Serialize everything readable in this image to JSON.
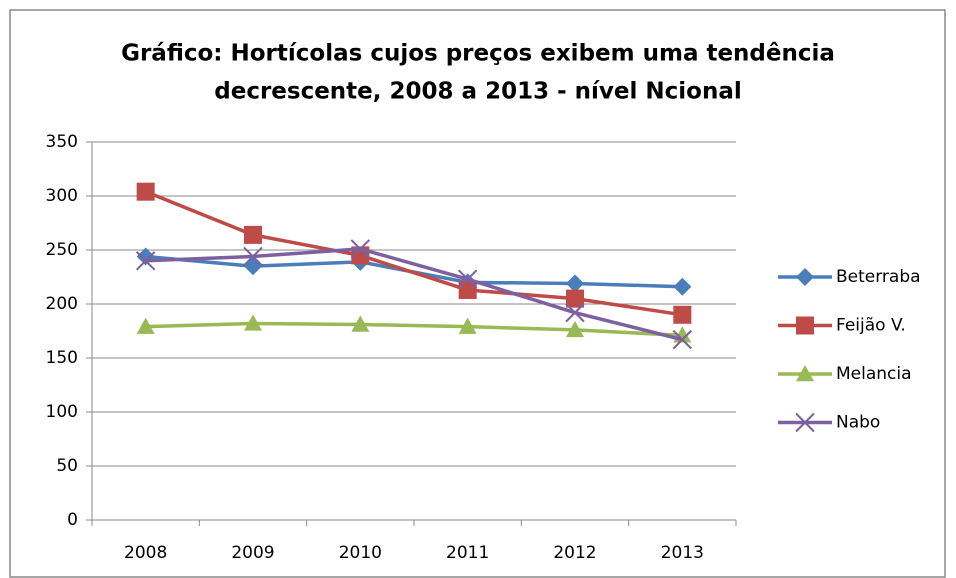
{
  "chart_data": {
    "type": "line",
    "title": [
      "Gráfico: Hortícolas cujos preços exibem uma tendência",
      "decrescente, 2008 a 2013 - nível Ncional"
    ],
    "categories": [
      "2008",
      "2009",
      "2010",
      "2011",
      "2012",
      "2013"
    ],
    "series": [
      {
        "name": "Beterraba",
        "color": "#4a7ebb",
        "marker": "diamond",
        "values": [
          244,
          235,
          239,
          220,
          219,
          216
        ]
      },
      {
        "name": "Feijão V.",
        "color": "#be4b48",
        "marker": "square",
        "values": [
          304,
          264,
          245,
          213,
          205,
          190
        ]
      },
      {
        "name": "Melancia",
        "color": "#98b954",
        "marker": "triangle",
        "values": [
          179,
          182,
          181,
          179,
          176,
          171
        ]
      },
      {
        "name": "Nabo",
        "color": "#7d60a0",
        "marker": "x",
        "values": [
          240,
          244,
          251,
          223,
          192,
          167
        ]
      }
    ],
    "ylim": [
      0,
      350
    ],
    "yticks": [
      0,
      50,
      100,
      150,
      200,
      250,
      300,
      350
    ],
    "grid": true,
    "legend": "right"
  }
}
